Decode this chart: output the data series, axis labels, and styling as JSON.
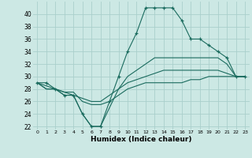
{
  "title": "",
  "xlabel": "Humidex (Indice chaleur)",
  "background_color": "#cce8e4",
  "grid_color": "#aacfcc",
  "line_color": "#1a6b5e",
  "xlim": [
    -0.5,
    23.5
  ],
  "ylim": [
    21.5,
    42
  ],
  "yticks": [
    22,
    24,
    26,
    28,
    30,
    32,
    34,
    36,
    38,
    40
  ],
  "xticks": [
    0,
    1,
    2,
    3,
    4,
    5,
    6,
    7,
    8,
    9,
    10,
    11,
    12,
    13,
    14,
    15,
    16,
    17,
    18,
    19,
    20,
    21,
    22,
    23
  ],
  "series": [
    {
      "x": [
        0,
        1,
        2,
        3,
        4,
        5,
        6,
        7,
        8,
        9,
        10,
        11,
        12,
        13,
        14,
        15,
        16,
        17,
        18,
        19,
        20,
        21,
        22,
        23
      ],
      "y": [
        29,
        29,
        28,
        27,
        27,
        24,
        22,
        22,
        26,
        30,
        34,
        37,
        41,
        41,
        41,
        41,
        39,
        36,
        36,
        35,
        34,
        33,
        30,
        30
      ],
      "marker": "+"
    },
    {
      "x": [
        0,
        1,
        2,
        3,
        4,
        5,
        6,
        7,
        8,
        9,
        10,
        11,
        12,
        13,
        14,
        15,
        16,
        17,
        18,
        19,
        20,
        21,
        22,
        23
      ],
      "y": [
        29,
        28,
        28,
        27,
        27,
        24,
        22,
        22,
        25,
        28,
        30,
        31,
        32,
        33,
        33,
        33,
        33,
        33,
        33,
        33,
        33,
        32,
        30,
        30
      ],
      "marker": null
    },
    {
      "x": [
        0,
        1,
        2,
        3,
        4,
        5,
        6,
        7,
        8,
        9,
        10,
        11,
        12,
        13,
        14,
        15,
        16,
        17,
        18,
        19,
        20,
        21,
        22,
        23
      ],
      "y": [
        29,
        28.5,
        28,
        27.5,
        27,
        26.5,
        26,
        26,
        27,
        28,
        29,
        29.5,
        30,
        30.5,
        31,
        31,
        31,
        31,
        31,
        31,
        31,
        30.5,
        30,
        30
      ],
      "marker": null
    },
    {
      "x": [
        0,
        1,
        2,
        3,
        4,
        5,
        6,
        7,
        8,
        9,
        10,
        11,
        12,
        13,
        14,
        15,
        16,
        17,
        18,
        19,
        20,
        21,
        22,
        23
      ],
      "y": [
        29,
        28,
        28,
        27.5,
        27.5,
        26,
        25.5,
        25.5,
        26,
        27,
        28,
        28.5,
        29,
        29,
        29,
        29,
        29,
        29.5,
        29.5,
        30,
        30,
        30,
        30,
        30
      ],
      "marker": null
    }
  ]
}
